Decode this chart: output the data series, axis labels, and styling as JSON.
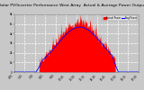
{
  "title": "Solar PV/Inverter Performance West Array  Actual & Average Power Output",
  "title_fontsize": 3.2,
  "bg_color": "#c8c8c8",
  "plot_bg_color": "#c8c8c8",
  "grid_color": "#ffffff",
  "bar_color": "#ff0000",
  "avg_line_color": "#0000ff",
  "legend_actual_color": "#ff0000",
  "legend_avg_color": "#0000ff",
  "legend_label_actual": "Actual Power",
  "legend_label_avg": "Avg Power",
  "tick_fontsize": 2.0,
  "ylim": [
    0,
    6000
  ],
  "ytick_labels": [
    "0",
    "1k",
    "2k",
    "3k",
    "4k",
    "5k",
    "6k"
  ],
  "num_points": 288,
  "xtick_labels": [
    "4:30",
    "5:45",
    "7:00",
    "8:15",
    "9:30",
    "10:45",
    "12:00",
    "13:15",
    "14:30",
    "15:45",
    "17:00",
    "18:15",
    "19:30"
  ]
}
